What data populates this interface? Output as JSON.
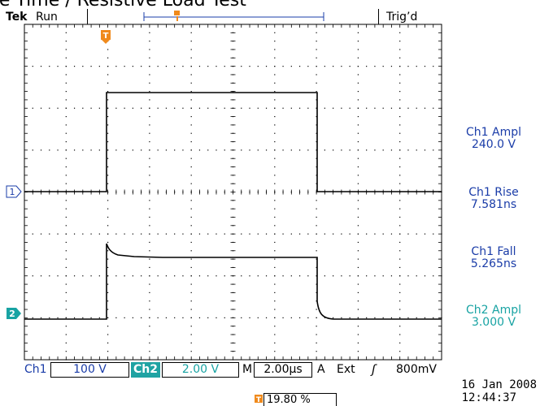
{
  "title": "Rise Time / Resistive Load Test",
  "header": {
    "brand": "Tek",
    "run_status": "Run",
    "trigger_status": "Trig’d"
  },
  "markers": {
    "trigger": "T",
    "ch1": "1",
    "ch2": "2"
  },
  "measurements": [
    {
      "label": "Ch1 Ampl",
      "value": "240.0 V",
      "color": "#1a3ca8"
    },
    {
      "label": "Ch1 Rise",
      "value": "7.581ns",
      "color": "#1a3ca8"
    },
    {
      "label": "Ch1 Fall",
      "value": "5.265ns",
      "color": "#1a3ca8"
    },
    {
      "label": "Ch2 Ampl",
      "value": "3.000 V",
      "color": "#18a3a3"
    }
  ],
  "bottom_bar": {
    "ch1_label": "Ch1",
    "ch1_scale": "100 V",
    "ch2_label": "Ch2",
    "ch2_scale": "2.00 V",
    "m_label": "M",
    "timebase": "2.00µs",
    "a_label": "A",
    "trigger_source": "Ext",
    "trigger_slope": "ʃ",
    "trigger_level": "800mV"
  },
  "trigger_position": "19.80 %",
  "date": "16 Jan  2008",
  "time": "12:44:37",
  "colors": {
    "ch1": "#1a3ca8",
    "ch2": "#18a3a3",
    "trigger": "#f08a1c",
    "trace": "#000000"
  }
}
